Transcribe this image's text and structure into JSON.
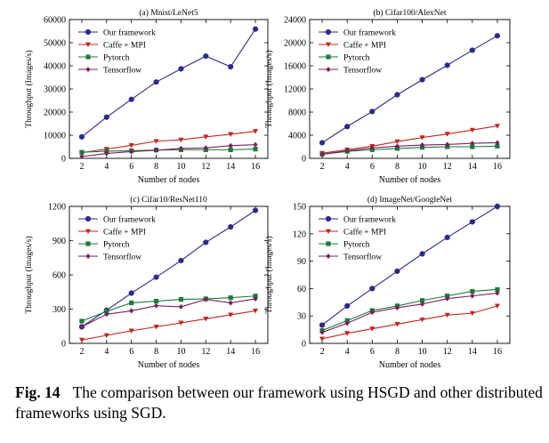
{
  "caption": {
    "label": "Fig. 14",
    "text": "The comparison between our framework using HSGD and other distributed frameworks using SGD."
  },
  "series_styles": [
    {
      "name": "Our framework",
      "color": "#2b2b8c",
      "marker": "circle"
    },
    {
      "name": "Caffe + MPI",
      "color": "#c0261e",
      "marker": "triangle-down"
    },
    {
      "name": "Pytorch",
      "color": "#1e7a3a",
      "marker": "square"
    },
    {
      "name": "Tensorflow",
      "color": "#7a1f5e",
      "marker": "diamond"
    }
  ],
  "chart_data": [
    {
      "type": "line",
      "title": "(a) Mnist/LeNet5",
      "xlabel": "Number of nodes",
      "ylabel": "Throughput (Images/s)",
      "x": [
        2,
        4,
        6,
        8,
        10,
        12,
        14,
        16
      ],
      "xlim": [
        1,
        17
      ],
      "ylim": [
        0,
        60000
      ],
      "yticks": [
        0,
        10000,
        20000,
        30000,
        40000,
        50000,
        60000
      ],
      "legend": "top-left",
      "series": [
        {
          "name": "Our framework",
          "values": [
            9300,
            17800,
            25500,
            33000,
            38700,
            44200,
            39600,
            55900
          ]
        },
        {
          "name": "Caffe + MPI",
          "values": [
            2500,
            4000,
            5600,
            7400,
            8000,
            9300,
            10400,
            11700
          ]
        },
        {
          "name": "Pytorch",
          "values": [
            2600,
            3100,
            3300,
            3600,
            3700,
            3700,
            3700,
            4000
          ]
        },
        {
          "name": "Tensorflow",
          "values": [
            800,
            2100,
            2900,
            3500,
            4300,
            4500,
            5500,
            5900
          ]
        }
      ]
    },
    {
      "type": "line",
      "title": "(b) Cifar100/AlexNet",
      "xlabel": "Number of nodes",
      "ylabel": "Throughput (Images/s)",
      "x": [
        2,
        4,
        6,
        8,
        10,
        12,
        14,
        16
      ],
      "xlim": [
        1,
        17
      ],
      "ylim": [
        0,
        24000
      ],
      "yticks": [
        0,
        4000,
        8000,
        12000,
        16000,
        20000,
        24000
      ],
      "legend": "top-left",
      "series": [
        {
          "name": "Our framework",
          "values": [
            2700,
            5500,
            8100,
            11000,
            13600,
            16100,
            18700,
            21200
          ]
        },
        {
          "name": "Caffe + MPI",
          "values": [
            900,
            1500,
            2100,
            2900,
            3600,
            4200,
            4900,
            5600
          ]
        },
        {
          "name": "Pytorch",
          "values": [
            700,
            1200,
            1500,
            1700,
            1900,
            2000,
            2000,
            2100
          ]
        },
        {
          "name": "Tensorflow",
          "values": [
            700,
            1300,
            1800,
            2100,
            2300,
            2400,
            2600,
            2700
          ]
        }
      ]
    },
    {
      "type": "line",
      "title": "(c) Cifar10/ResNet110",
      "xlabel": "Number of nodes",
      "ylabel": "Throughput (Images/s)",
      "x": [
        2,
        4,
        6,
        8,
        10,
        12,
        14,
        16
      ],
      "xlim": [
        1,
        17
      ],
      "ylim": [
        0,
        1200
      ],
      "yticks": [
        0,
        300,
        600,
        900,
        1200
      ],
      "legend": "top-left",
      "series": [
        {
          "name": "Our framework",
          "values": [
            145,
            290,
            440,
            580,
            725,
            885,
            1020,
            1165
          ]
        },
        {
          "name": "Caffe + MPI",
          "values": [
            30,
            70,
            110,
            145,
            180,
            215,
            250,
            285
          ]
        },
        {
          "name": "Pytorch",
          "values": [
            195,
            280,
            355,
            370,
            385,
            390,
            400,
            415
          ]
        },
        {
          "name": "Tensorflow",
          "values": [
            145,
            255,
            285,
            330,
            320,
            385,
            355,
            390
          ]
        }
      ]
    },
    {
      "type": "line",
      "title": "(d) ImageNet/GoogleNet",
      "xlabel": "Number of nodes",
      "ylabel": "Throughput (Images/s)",
      "x": [
        2,
        4,
        6,
        8,
        10,
        12,
        14,
        16
      ],
      "xlim": [
        1,
        17
      ],
      "ylim": [
        0,
        150
      ],
      "yticks": [
        0,
        30,
        60,
        90,
        120,
        150
      ],
      "legend": "top-left",
      "series": [
        {
          "name": "Our framework",
          "values": [
            20,
            41,
            60,
            79,
            98,
            116,
            133,
            150
          ]
        },
        {
          "name": "Caffe + MPI",
          "values": [
            5,
            11,
            16,
            21,
            26,
            31,
            33,
            41
          ]
        },
        {
          "name": "Pytorch",
          "values": [
            14,
            25,
            36,
            41,
            47,
            52,
            57,
            59
          ]
        },
        {
          "name": "Tensorflow",
          "values": [
            12,
            22,
            34,
            39,
            43,
            49,
            52,
            55
          ]
        }
      ]
    }
  ]
}
